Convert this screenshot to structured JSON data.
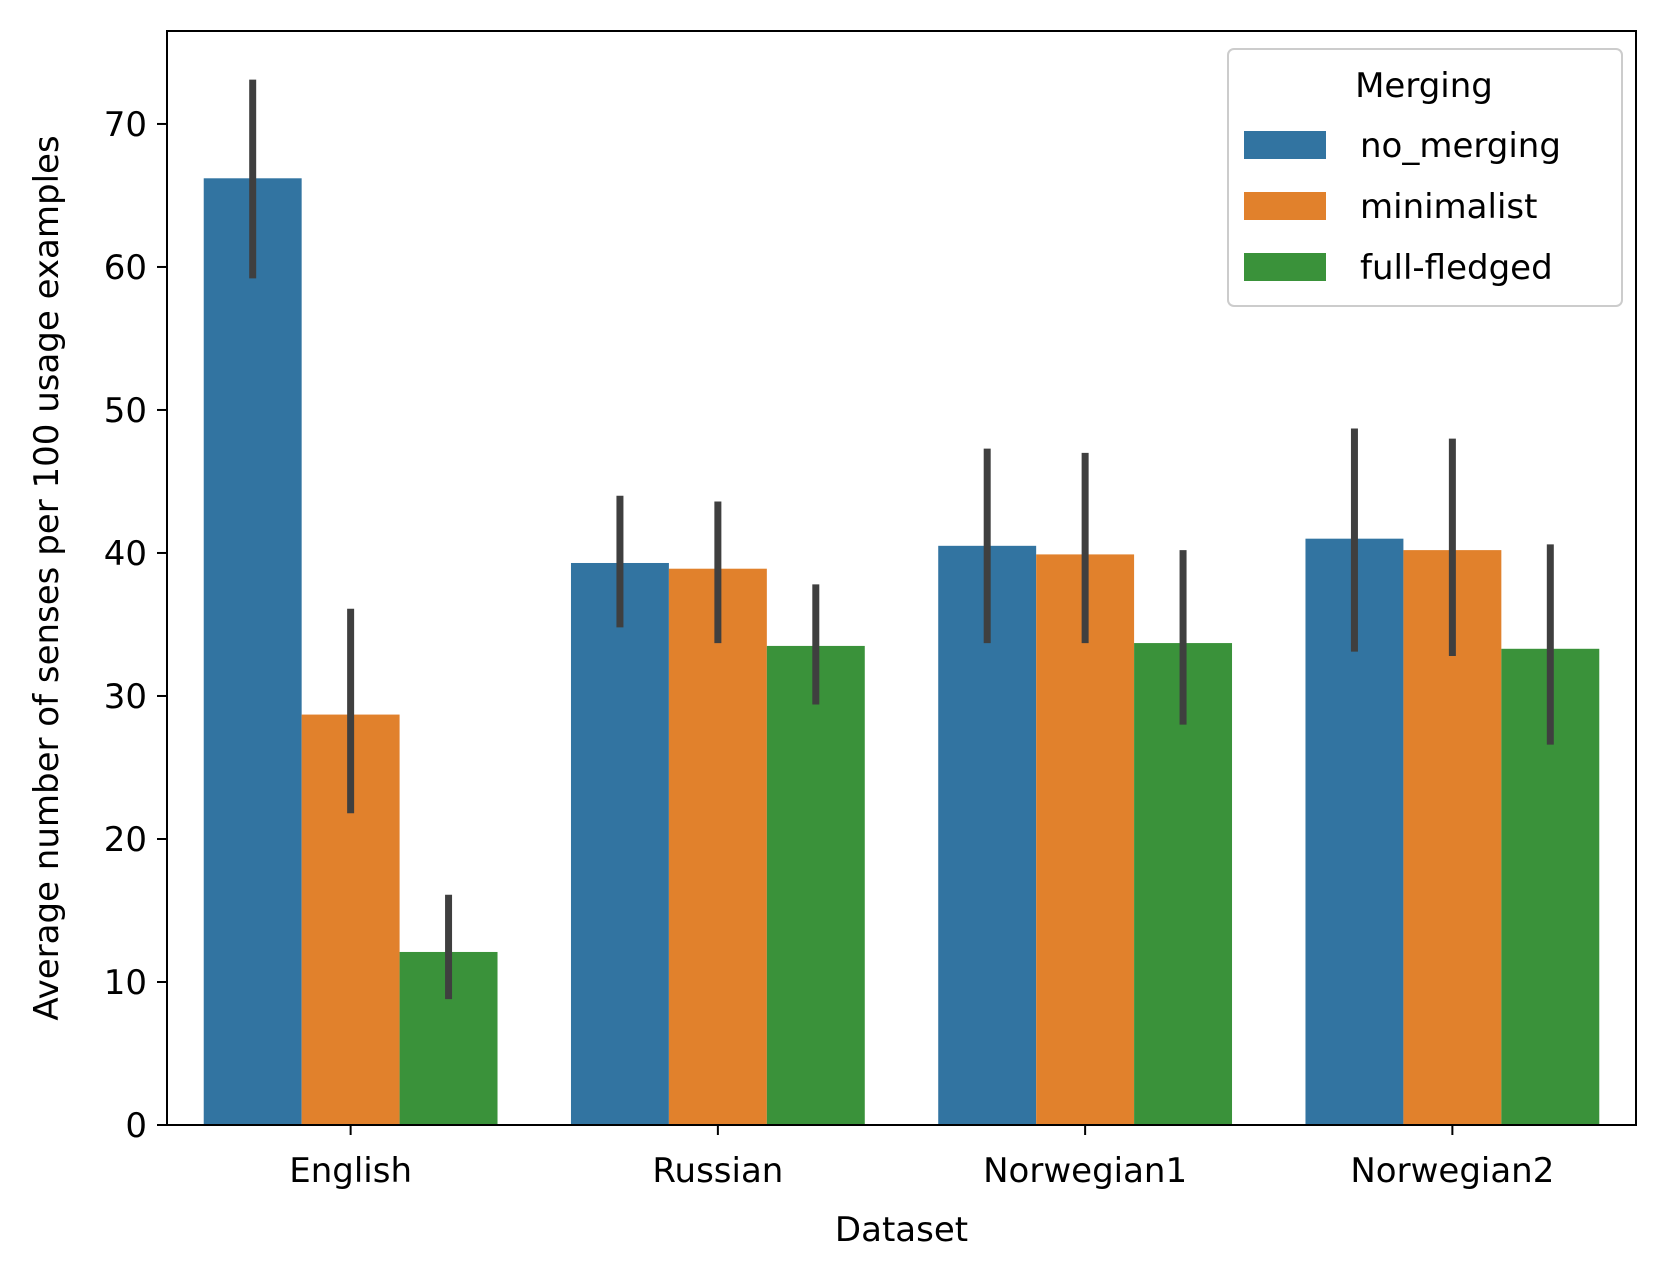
{
  "chart_data": {
    "type": "bar",
    "title": "",
    "xlabel": "Dataset",
    "ylabel": "Average number of senses per 100 usage examples",
    "ylim": [
      0,
      76.5
    ],
    "yticks": [
      0,
      10,
      20,
      30,
      40,
      50,
      60,
      70
    ],
    "categories": [
      "English",
      "Russian",
      "Norwegian1",
      "Norwegian2"
    ],
    "legend_title": "Merging",
    "legend_position": "top-right",
    "series": [
      {
        "name": "no_merging",
        "color": "#3274a1",
        "values": [
          66.2,
          39.3,
          40.5,
          41.0
        ],
        "ci_low": [
          59.2,
          34.8,
          33.7,
          33.1
        ],
        "ci_high": [
          73.1,
          44.0,
          47.3,
          48.7
        ]
      },
      {
        "name": "minimalist",
        "color": "#e1812c",
        "values": [
          28.7,
          38.9,
          39.9,
          40.2
        ],
        "ci_low": [
          21.8,
          33.7,
          33.7,
          32.8
        ],
        "ci_high": [
          36.1,
          43.6,
          47.0,
          48.0
        ]
      },
      {
        "name": "full-fledged",
        "color": "#3a923a",
        "values": [
          12.1,
          33.5,
          33.7,
          33.3
        ],
        "ci_low": [
          8.8,
          29.4,
          28.0,
          26.6
        ],
        "ci_high": [
          16.1,
          37.8,
          40.2,
          40.6
        ]
      }
    ],
    "errorbar_color": "#3f3f3f"
  }
}
